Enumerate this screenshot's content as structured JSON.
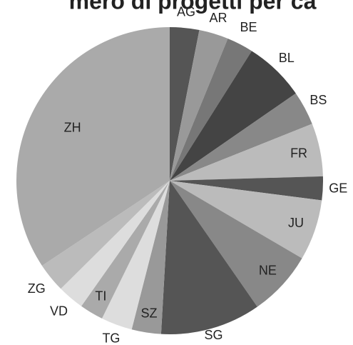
{
  "chart_data": {
    "type": "pie",
    "title": "mero di progetti per ca",
    "categories": [
      "AG",
      "AR",
      "BE",
      "BL",
      "BS",
      "FR",
      "GE",
      "JU",
      "NE",
      "SG",
      "SZ",
      "TG",
      "TI",
      "VD",
      "ZG",
      "ZH"
    ],
    "values": [
      3.1,
      3.1,
      2.8,
      6.4,
      3.6,
      5.6,
      2.5,
      6.4,
      6.9,
      10.6,
      3.1,
      3.3,
      2.5,
      2.8,
      3.1,
      34.4
    ],
    "colors": [
      "#555555",
      "#999999",
      "#777777",
      "#444444",
      "#888888",
      "#bbbbbb",
      "#555555",
      "#bbbbbb",
      "#888888",
      "#555555",
      "#999999",
      "#dddddd",
      "#aaaaaa",
      "#dddddd",
      "#bbbbbb",
      "#aaaaaa"
    ]
  }
}
